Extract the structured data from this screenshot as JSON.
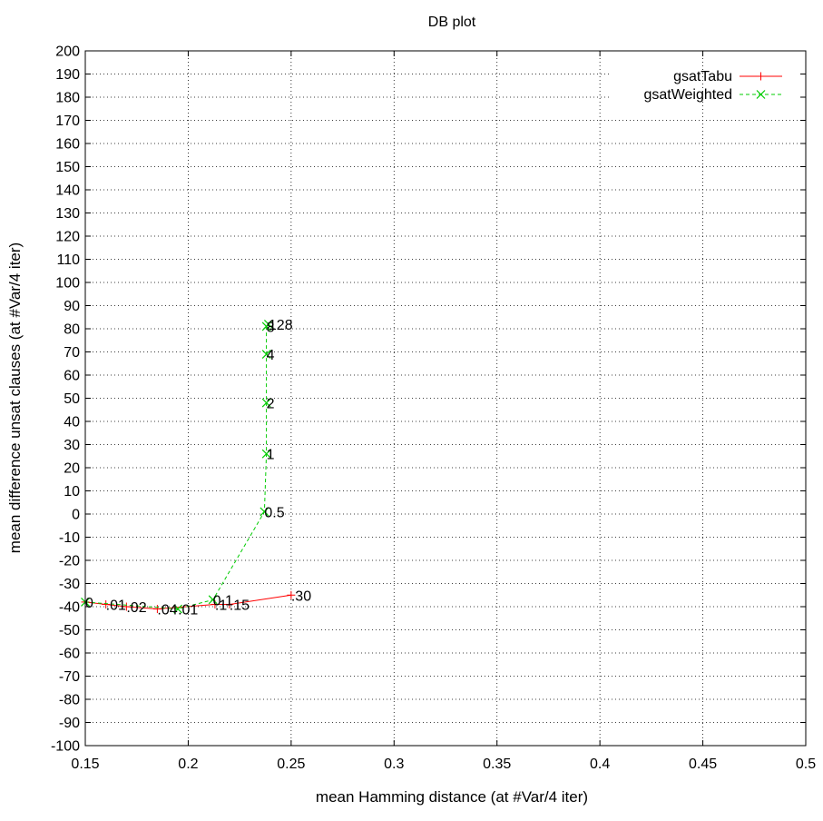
{
  "chart_data": {
    "type": "line",
    "title": "DB plot",
    "xlabel": "mean Hamming distance (at #Var/4 iter)",
    "ylabel": "mean difference unsat clauses (at #Var/4 iter)",
    "xlim": [
      0.15,
      0.5
    ],
    "ylim": [
      -100,
      200
    ],
    "xticks": [
      "0.15",
      "0.2",
      "0.25",
      "0.3",
      "0.35",
      "0.4",
      "0.45",
      "0.5"
    ],
    "yticks": [
      "-100",
      "-90",
      "-80",
      "-70",
      "-60",
      "-50",
      "-40",
      "-30",
      "-20",
      "-10",
      "0",
      "10",
      "20",
      "30",
      "40",
      "50",
      "60",
      "70",
      "80",
      "90",
      "100",
      "110",
      "120",
      "130",
      "140",
      "150",
      "160",
      "170",
      "180",
      "190",
      "200"
    ],
    "grid": true,
    "legend_position": "top-right",
    "series": [
      {
        "name": "gsatTabu",
        "color": "#ff0000",
        "line_style": "solid",
        "marker": "plus",
        "points": [
          {
            "x": 0.15,
            "y": -38,
            "label": "0"
          },
          {
            "x": 0.16,
            "y": -39,
            "label": ".01"
          },
          {
            "x": 0.17,
            "y": -40,
            "label": ".02"
          },
          {
            "x": 0.185,
            "y": -41,
            "label": ".04"
          },
          {
            "x": 0.213,
            "y": -39,
            "label": ".1"
          },
          {
            "x": 0.22,
            "y": -39,
            "label": ".15"
          },
          {
            "x": 0.25,
            "y": -35,
            "label": ".30"
          }
        ]
      },
      {
        "name": "gsatWeighted",
        "color": "#00cc00",
        "line_style": "dashed",
        "marker": "x",
        "points": [
          {
            "x": 0.15,
            "y": -38,
            "label": ""
          },
          {
            "x": 0.195,
            "y": -41,
            "label": ".01"
          },
          {
            "x": 0.212,
            "y": -37,
            "label": "0.1"
          },
          {
            "x": 0.237,
            "y": 1,
            "label": "0.5"
          },
          {
            "x": 0.238,
            "y": 26,
            "label": "1"
          },
          {
            "x": 0.238,
            "y": 48,
            "label": "2"
          },
          {
            "x": 0.238,
            "y": 69,
            "label": "4"
          },
          {
            "x": 0.238,
            "y": 81,
            "label": "8"
          },
          {
            "x": 0.239,
            "y": 82,
            "label": "128"
          }
        ]
      }
    ]
  }
}
